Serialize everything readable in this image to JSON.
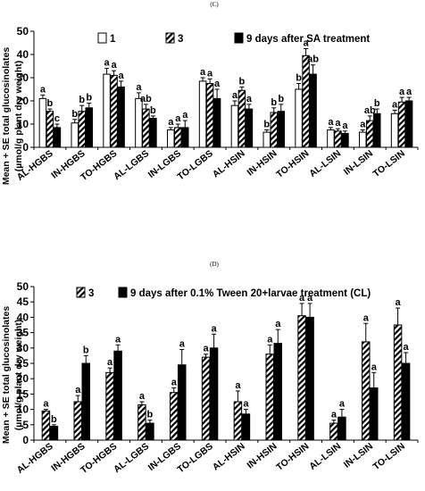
{
  "colors": {
    "bar_outline": "#000000",
    "solid": "#000000",
    "blank": "#ffffff",
    "hatch": "#000000"
  },
  "chart_data": [
    {
      "type": "bar",
      "panel_label": "(C)",
      "ylabel_lines": [
        "Mean + SE total glucosinolates",
        "(µmol/g  plant dry weight)"
      ],
      "ylim": [
        0,
        50
      ],
      "yticks": [
        0,
        10,
        20,
        30,
        40,
        50
      ],
      "grid": false,
      "legend_position": "top",
      "categories": [
        "AL-HGBS",
        "IN-HGBS",
        "TO-HGBS",
        "AL-LGBS",
        "IN-LGBS",
        "TO-LGBS",
        "AL-HSIN",
        "IN-HSIN",
        "TO-HSIN",
        "AL-LSIN",
        "IN-LSIN",
        "TO-LSIN"
      ],
      "series": [
        {
          "name": "1",
          "pattern": "blank",
          "values": [
            21,
            10.5,
            31.5,
            21,
            7.5,
            28.5,
            18,
            6.5,
            25,
            7.5,
            6.5,
            14.5
          ],
          "errors": [
            1.5,
            1.5,
            2.5,
            2.5,
            1,
            1.5,
            2,
            1,
            2.5,
            1,
            1,
            1.5
          ],
          "letters": [
            "a",
            "b",
            "a",
            "a",
            "a",
            "a",
            "a",
            "b",
            "b",
            "a",
            "a",
            "a"
          ]
        },
        {
          "name": "3",
          "pattern": "hatch",
          "values": [
            15.5,
            15.5,
            31,
            16.5,
            8.5,
            27.5,
            24.5,
            15,
            39.5,
            7,
            11.5,
            19.5
          ],
          "errors": [
            1,
            2.5,
            2,
            2,
            1.5,
            2,
            1.5,
            2,
            3,
            1,
            2,
            2
          ],
          "letters": [
            "b",
            "b",
            "a",
            "ab",
            "a",
            "a",
            "b",
            "b",
            "a",
            "a",
            "ab",
            "a"
          ]
        },
        {
          "name": "9 days after SA treatment",
          "pattern": "solid",
          "values": [
            8.5,
            17,
            26,
            12.5,
            8.5,
            21,
            16.5,
            15.5,
            31.5,
            6,
            14.5,
            20
          ],
          "errors": [
            1.5,
            2,
            2.5,
            1,
            3,
            4,
            2,
            3,
            4,
            1,
            2,
            1.5
          ],
          "letters": [
            "c",
            "b",
            "a",
            "b",
            "a",
            "a",
            "a",
            "b",
            "ab",
            "a",
            "b",
            "a"
          ]
        }
      ]
    },
    {
      "type": "bar",
      "panel_label": "(D)",
      "ylabel_lines": [
        "Mean + SE total glucosinolates",
        "(µmol/g  plant dry weight)"
      ],
      "ylim": [
        0,
        50
      ],
      "yticks": [
        0,
        5,
        10,
        15,
        20,
        25,
        30,
        35,
        40,
        45,
        50
      ],
      "grid": false,
      "legend_position": "top",
      "categories": [
        "AL-HGBS",
        "IN-HGBS",
        "TO-HGBS",
        "AL-LGBS",
        "IN-LGBS",
        "TO-LGBS",
        "AL-HSIN",
        "IN-HSIN",
        "TO-HSIN",
        "AL-LSIN",
        "IN-LSIN",
        "TO-LSIN"
      ],
      "series": [
        {
          "name": "3",
          "pattern": "hatch",
          "values": [
            9.5,
            12.5,
            22,
            11.5,
            15.5,
            27,
            12.5,
            28,
            40.5,
            5.5,
            32,
            37.5
          ],
          "errors": [
            0.5,
            2,
            1.5,
            1,
            1.5,
            1,
            3.5,
            3,
            4,
            1,
            6,
            5.5
          ],
          "letters": [
            "a",
            "a",
            "a",
            "a",
            "a",
            "a",
            "a",
            "a",
            "a",
            "a",
            "a",
            "a"
          ]
        },
        {
          "name": "9 days after 0.1% Tween 20+larvae treatment (CL)",
          "pattern": "solid",
          "values": [
            4.5,
            25,
            29,
            5.5,
            24.5,
            30,
            8.5,
            31.5,
            40,
            7.5,
            17,
            25
          ],
          "errors": [
            0.5,
            2.5,
            2,
            1,
            5,
            4.5,
            1.5,
            4.5,
            4.5,
            2.5,
            5,
            3.5
          ],
          "letters": [
            "b",
            "b",
            "a",
            "b",
            "a",
            "a",
            "a",
            "a",
            "a",
            "a",
            "a",
            "a"
          ]
        }
      ]
    }
  ]
}
